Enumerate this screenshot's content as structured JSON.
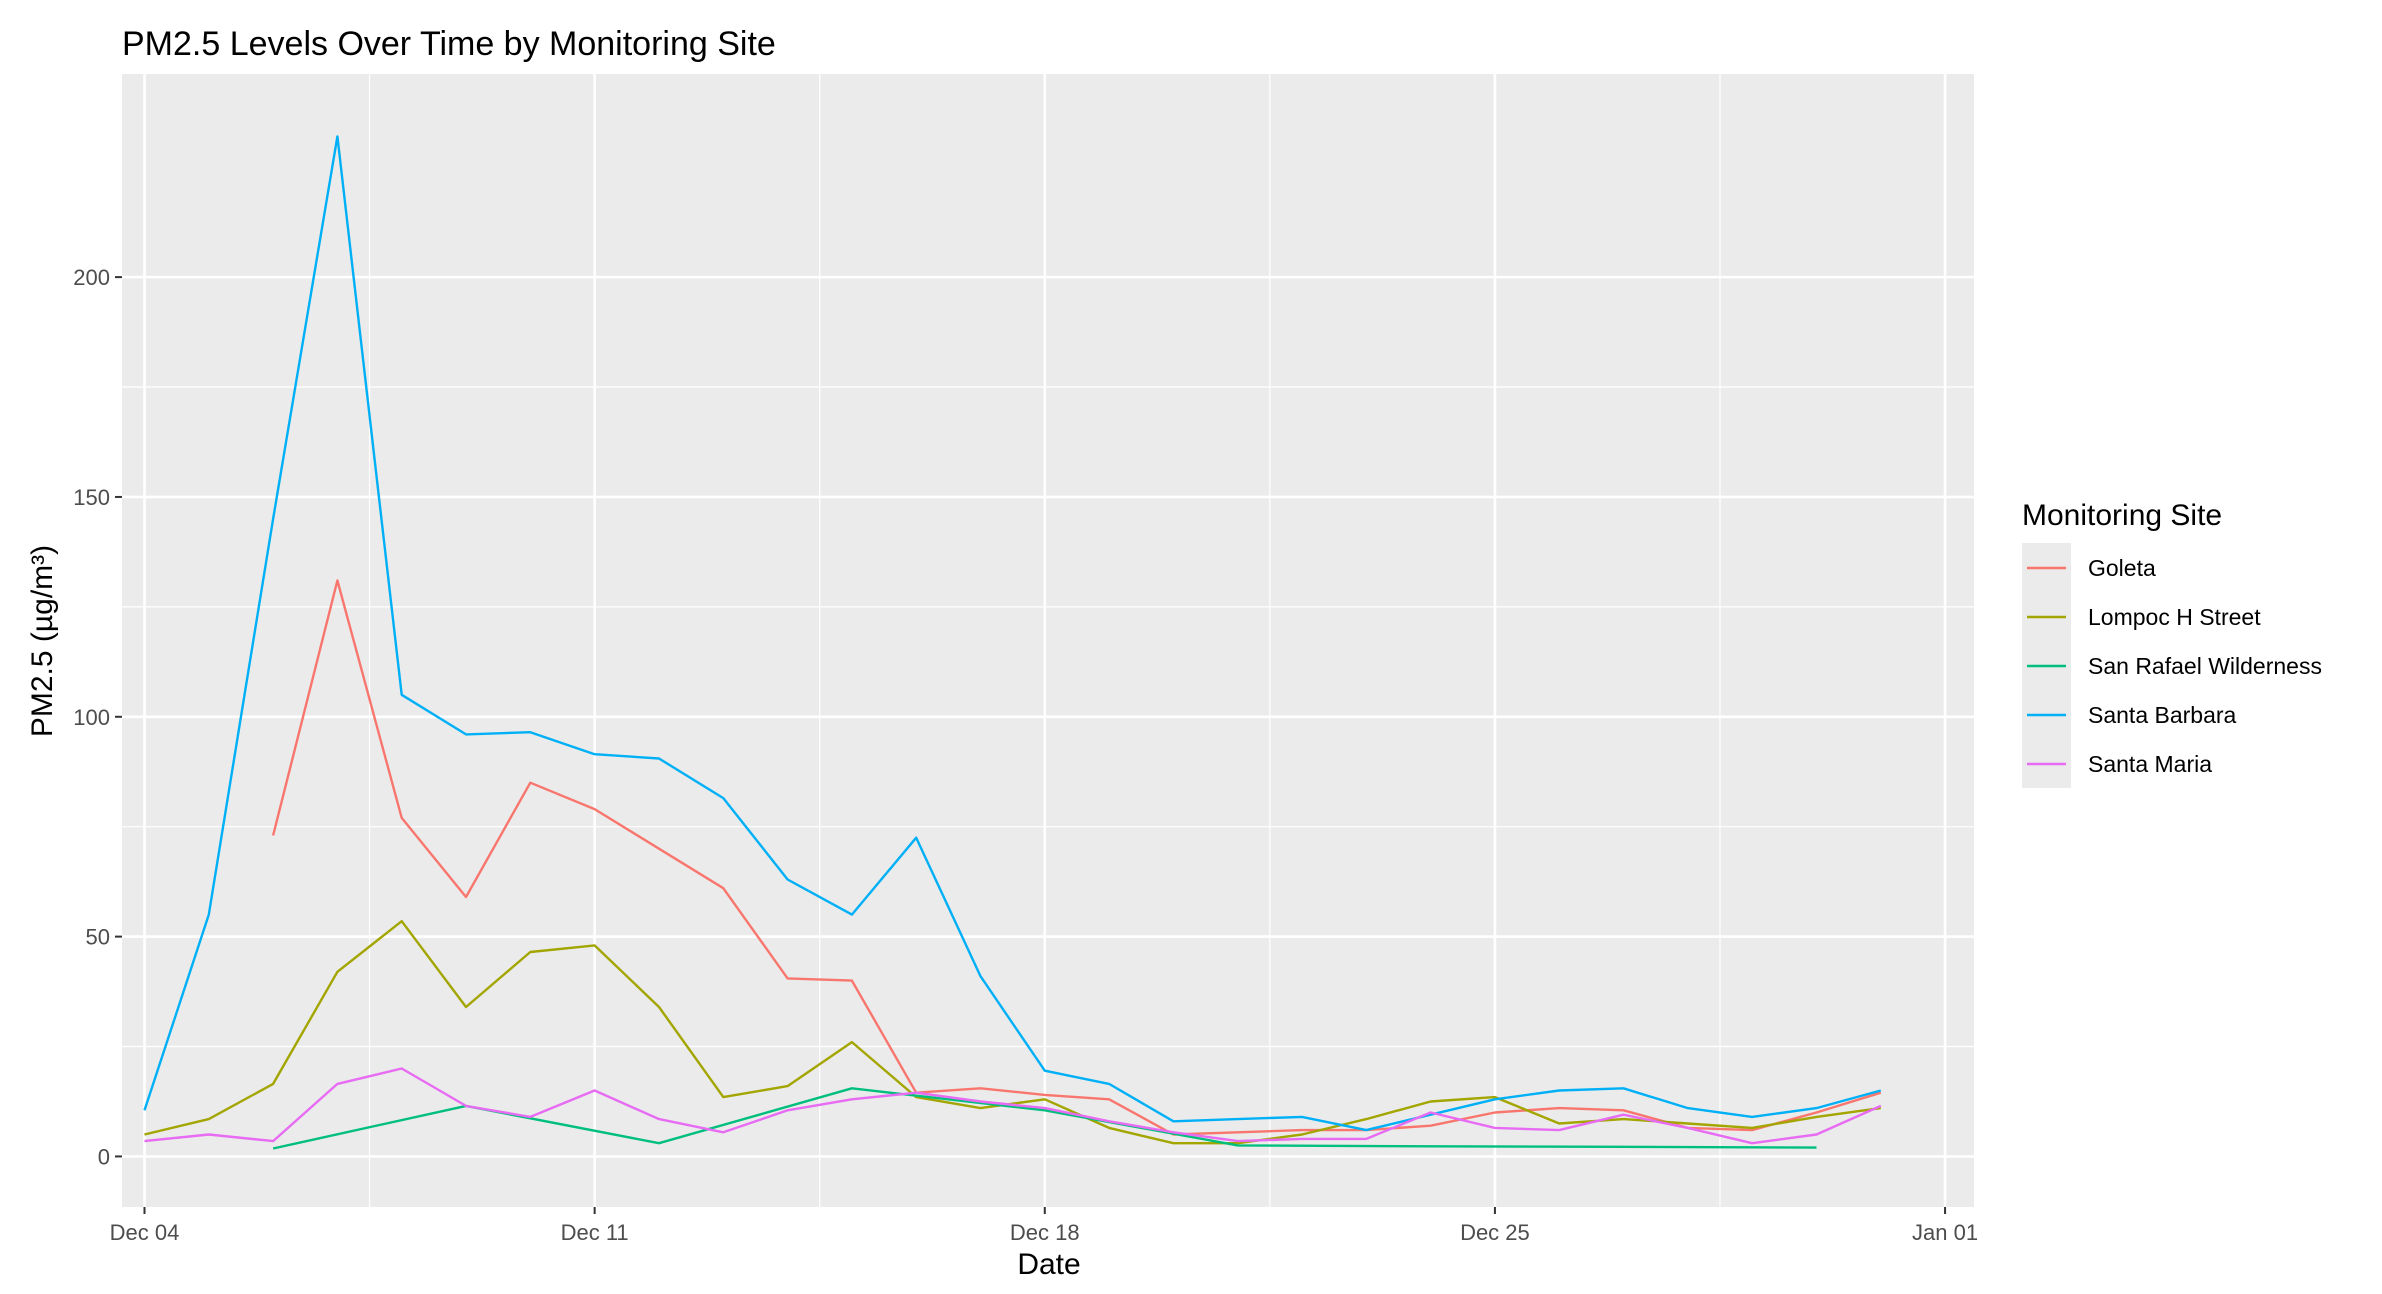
{
  "chart_data": {
    "type": "line",
    "title": "PM2.5 Levels Over Time by Monitoring Site",
    "xlabel": "Date",
    "ylabel": "PM2.5 (µg/m³)",
    "xlim": [
      "2023-12-04",
      "2024-01-01"
    ],
    "ylim": [
      0,
      235
    ],
    "x_ticks": [
      {
        "date": "2023-12-04",
        "label": "Dec 04"
      },
      {
        "date": "2023-12-11",
        "label": "Dec 11"
      },
      {
        "date": "2023-12-18",
        "label": "Dec 18"
      },
      {
        "date": "2023-12-25",
        "label": "Dec 25"
      },
      {
        "date": "2024-01-01",
        "label": "Jan 01"
      }
    ],
    "y_ticks": [
      0,
      50,
      100,
      150,
      200
    ],
    "grid": true,
    "legend": {
      "title": "Monitoring Site",
      "position": "right"
    },
    "series": [
      {
        "name": "Goleta",
        "color": "#F8766D",
        "points": [
          [
            "2023-12-06",
            73
          ],
          [
            "2023-12-07",
            131
          ],
          [
            "2023-12-08",
            77
          ],
          [
            "2023-12-09",
            59
          ],
          [
            "2023-12-10",
            85
          ],
          [
            "2023-12-11",
            79
          ],
          [
            "2023-12-12",
            70
          ],
          [
            "2023-12-13",
            61
          ],
          [
            "2023-12-14",
            40.5
          ],
          [
            "2023-12-15",
            40
          ],
          [
            "2023-12-16",
            14.5
          ],
          [
            "2023-12-17",
            15.5
          ],
          [
            "2023-12-18",
            14
          ],
          [
            "2023-12-19",
            13
          ],
          [
            "2023-12-20",
            5
          ],
          [
            "2023-12-21",
            5.5
          ],
          [
            "2023-12-22",
            6
          ],
          [
            "2023-12-23",
            6
          ],
          [
            "2023-12-24",
            7
          ],
          [
            "2023-12-25",
            10
          ],
          [
            "2023-12-26",
            11
          ],
          [
            "2023-12-27",
            10.5
          ],
          [
            "2023-12-28",
            6.5
          ],
          [
            "2023-12-29",
            6
          ],
          [
            "2023-12-30",
            10
          ],
          [
            "2023-12-31",
            14.5
          ]
        ]
      },
      {
        "name": "Lompoc H Street",
        "color": "#A3A500",
        "points": [
          [
            "2023-12-04",
            5
          ],
          [
            "2023-12-05",
            8.5
          ],
          [
            "2023-12-06",
            16.5
          ],
          [
            "2023-12-07",
            42
          ],
          [
            "2023-12-08",
            53.5
          ],
          [
            "2023-12-09",
            34
          ],
          [
            "2023-12-10",
            46.5
          ],
          [
            "2023-12-11",
            48
          ],
          [
            "2023-12-12",
            34
          ],
          [
            "2023-12-13",
            13.5
          ],
          [
            "2023-12-14",
            16
          ],
          [
            "2023-12-15",
            26
          ],
          [
            "2023-12-16",
            13.5
          ],
          [
            "2023-12-17",
            11
          ],
          [
            "2023-12-18",
            13
          ],
          [
            "2023-12-19",
            6.5
          ],
          [
            "2023-12-20",
            3
          ],
          [
            "2023-12-21",
            3
          ],
          [
            "2023-12-22",
            5
          ],
          [
            "2023-12-23",
            8.5
          ],
          [
            "2023-12-24",
            12.5
          ],
          [
            "2023-12-25",
            13.5
          ],
          [
            "2023-12-26",
            7.5
          ],
          [
            "2023-12-27",
            8.5
          ],
          [
            "2023-12-28",
            7.5
          ],
          [
            "2023-12-29",
            6.5
          ],
          [
            "2023-12-30",
            9
          ],
          [
            "2023-12-31",
            11
          ]
        ]
      },
      {
        "name": "San Rafael Wilderness",
        "color": "#00BF7D",
        "points": [
          [
            "2023-12-06",
            1.8
          ],
          [
            "2023-12-09",
            11.5
          ],
          [
            "2023-12-12",
            3
          ],
          [
            "2023-12-15",
            15.5
          ],
          [
            "2023-12-18",
            10.5
          ],
          [
            "2023-12-21",
            2.5
          ],
          [
            "2023-12-24",
            2.3
          ],
          [
            "2023-12-27",
            2.2
          ],
          [
            "2023-12-30",
            2
          ]
        ]
      },
      {
        "name": "Santa Barbara",
        "color": "#00B0F6",
        "points": [
          [
            "2023-12-04",
            10.5
          ],
          [
            "2023-12-05",
            55
          ],
          [
            "2023-12-06",
            145
          ],
          [
            "2023-12-07",
            232
          ],
          [
            "2023-12-08",
            105
          ],
          [
            "2023-12-09",
            96
          ],
          [
            "2023-12-10",
            96.5
          ],
          [
            "2023-12-11",
            91.5
          ],
          [
            "2023-12-12",
            90.5
          ],
          [
            "2023-12-13",
            81.5
          ],
          [
            "2023-12-14",
            63
          ],
          [
            "2023-12-15",
            55
          ],
          [
            "2023-12-16",
            72.5
          ],
          [
            "2023-12-17",
            41
          ],
          [
            "2023-12-18",
            19.5
          ],
          [
            "2023-12-19",
            16.5
          ],
          [
            "2023-12-20",
            8
          ],
          [
            "2023-12-21",
            8.5
          ],
          [
            "2023-12-22",
            9
          ],
          [
            "2023-12-23",
            6
          ],
          [
            "2023-12-24",
            9.5
          ],
          [
            "2023-12-25",
            13
          ],
          [
            "2023-12-26",
            15
          ],
          [
            "2023-12-27",
            15.5
          ],
          [
            "2023-12-28",
            11
          ],
          [
            "2023-12-29",
            9
          ],
          [
            "2023-12-30",
            11
          ],
          [
            "2023-12-31",
            15
          ]
        ]
      },
      {
        "name": "Santa Maria",
        "color": "#E76BF3",
        "points": [
          [
            "2023-12-04",
            3.5
          ],
          [
            "2023-12-05",
            5
          ],
          [
            "2023-12-06",
            3.5
          ],
          [
            "2023-12-07",
            16.5
          ],
          [
            "2023-12-08",
            20
          ],
          [
            "2023-12-09",
            11.5
          ],
          [
            "2023-12-10",
            9
          ],
          [
            "2023-12-11",
            15
          ],
          [
            "2023-12-12",
            8.5
          ],
          [
            "2023-12-13",
            5.5
          ],
          [
            "2023-12-14",
            10.5
          ],
          [
            "2023-12-15",
            13
          ],
          [
            "2023-12-16",
            14.5
          ],
          [
            "2023-12-17",
            12.5
          ],
          [
            "2023-12-18",
            11
          ],
          [
            "2023-12-19",
            8
          ],
          [
            "2023-12-20",
            5.5
          ],
          [
            "2023-12-21",
            3.5
          ],
          [
            "2023-12-22",
            4
          ],
          [
            "2023-12-23",
            4
          ],
          [
            "2023-12-24",
            10
          ],
          [
            "2023-12-25",
            6.5
          ],
          [
            "2023-12-26",
            6
          ],
          [
            "2023-12-27",
            9.5
          ],
          [
            "2023-12-28",
            6.5
          ],
          [
            "2023-12-29",
            3
          ],
          [
            "2023-12-30",
            5
          ],
          [
            "2023-12-31",
            11.5
          ]
        ]
      }
    ]
  }
}
